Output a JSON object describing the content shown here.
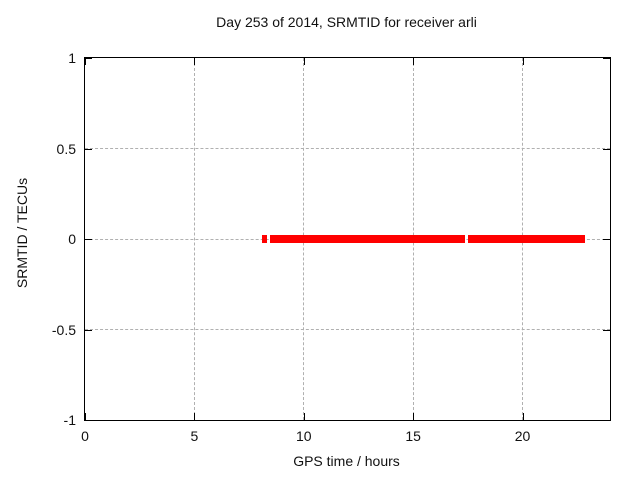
{
  "chart_data": {
    "type": "scatter",
    "title": "Day 253 of 2014, SRMTID for receiver arli",
    "xlabel": "GPS time / hours",
    "ylabel": "SRMTID / TECUs",
    "xlim": [
      0,
      24
    ],
    "ylim": [
      -1,
      1
    ],
    "x_tick_values": [
      0,
      5,
      10,
      15,
      20
    ],
    "x_tick_labels": [
      "0",
      "5",
      "10",
      "15",
      "20"
    ],
    "y_tick_values": [
      1,
      0.5,
      0,
      -0.5,
      -1
    ],
    "y_tick_labels": [
      "1",
      "0.5",
      "0",
      "-0.5",
      "-1"
    ],
    "grid": "dashed",
    "legend": "none",
    "series": [
      {
        "name": "SRMTID",
        "marker": "filled-square",
        "color": "#ff0000",
        "y_value_tecus": 0,
        "segments_hours": [
          [
            8.09,
            8.32
          ],
          [
            8.46,
            17.37
          ],
          [
            17.51,
            22.86
          ]
        ]
      }
    ]
  },
  "colors": {
    "background": "#ffffff",
    "border": "#000000",
    "grid": "#b0b0b0",
    "text": "#111111",
    "series": "#ff0000"
  }
}
